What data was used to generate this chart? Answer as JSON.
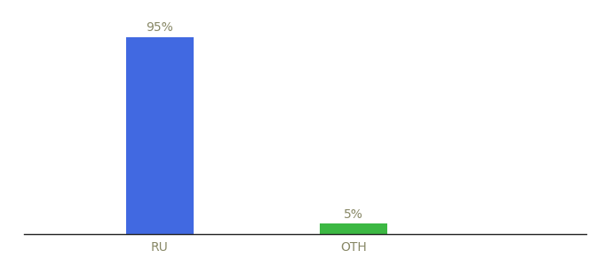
{
  "categories": [
    "RU",
    "OTH"
  ],
  "values": [
    95,
    5
  ],
  "bar_colors": [
    "#4169e1",
    "#3cb843"
  ],
  "label_texts": [
    "95%",
    "5%"
  ],
  "ylim": [
    0,
    100
  ],
  "background_color": "#ffffff",
  "label_fontsize": 10,
  "tick_fontsize": 10,
  "label_color": "#888866",
  "bar_width": 0.35,
  "x_positions": [
    1,
    2
  ],
  "xlim": [
    0.3,
    3.2
  ]
}
